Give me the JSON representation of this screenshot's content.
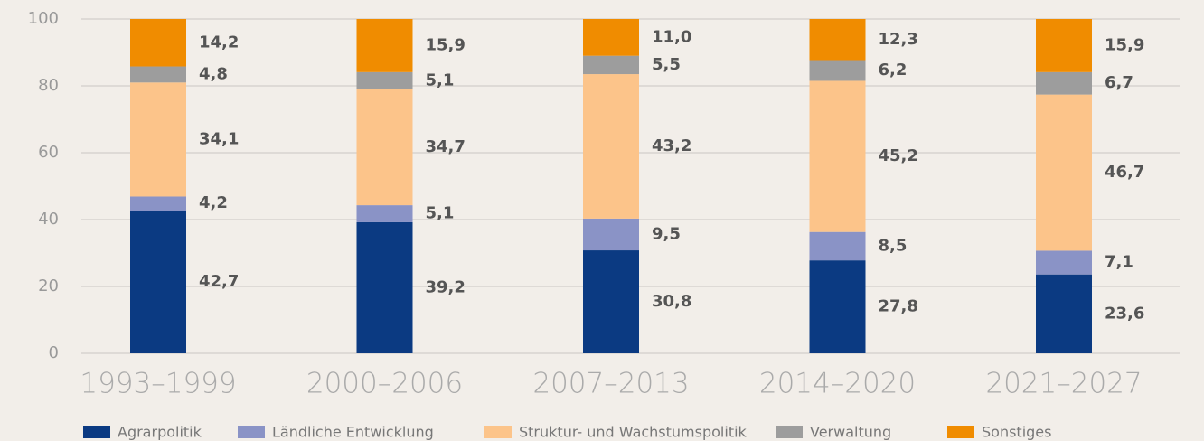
{
  "chart_data": {
    "type": "stacked_bar",
    "categories": [
      "1993–1999",
      "2000–2006",
      "2007–2013",
      "2014–2020",
      "2021–2027"
    ],
    "series": [
      {
        "name": "Agrarpolitik",
        "color": "#0b3a82",
        "values": [
          42.7,
          39.2,
          30.8,
          27.8,
          23.6
        ],
        "value_labels": [
          "42,7",
          "39,2",
          "30,8",
          "27,8",
          "23,6"
        ]
      },
      {
        "name": "Ländliche Entwicklung",
        "color": "#8a93c6",
        "values": [
          4.2,
          5.1,
          9.5,
          8.5,
          7.1
        ],
        "value_labels": [
          "4,2",
          "5,1",
          "9,5",
          "8,5",
          "7,1"
        ]
      },
      {
        "name": "Struktur- und Wachstumspolitik",
        "color": "#fcc48a",
        "values": [
          34.1,
          34.7,
          43.2,
          45.2,
          46.7
        ],
        "value_labels": [
          "34,1",
          "34,7",
          "43,2",
          "45,2",
          "46,7"
        ]
      },
      {
        "name": "Verwaltung",
        "color": "#9d9d9d",
        "values": [
          4.8,
          5.1,
          5.5,
          6.2,
          6.7
        ],
        "value_labels": [
          "4,8",
          "5,1",
          "5,5",
          "6,2",
          "6,7"
        ]
      },
      {
        "name": "Sonstiges",
        "color": "#f08c00",
        "values": [
          14.2,
          15.9,
          11.0,
          12.3,
          15.9
        ],
        "value_labels": [
          "14,2",
          "15,9",
          "11,0",
          "12,3",
          "15,9"
        ]
      }
    ],
    "ylim": [
      0,
      100
    ],
    "yticks": [
      0,
      20,
      40,
      60,
      80,
      100
    ],
    "grid": true,
    "legend": "bottom"
  }
}
